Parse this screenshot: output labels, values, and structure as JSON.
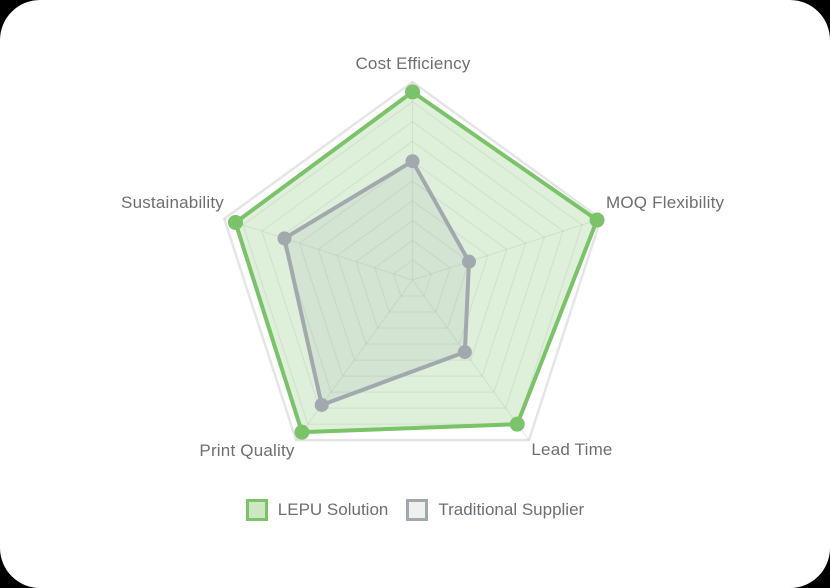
{
  "page": {
    "background": "#000000",
    "card_background": "#ffffff"
  },
  "chart_data": {
    "type": "radar",
    "categories": [
      "Cost Efficiency",
      "MOQ Flexibility",
      "Lead Time",
      "Print Quality",
      "Sustainability"
    ],
    "series": [
      {
        "name": "LEPU Solution",
        "values": [
          95,
          98,
          90,
          95,
          94
        ],
        "color": "#7ac368",
        "fill": "rgba(124,196,109,0.25)",
        "swatch_fill": "#cde7c2",
        "point_radius": 7.5
      },
      {
        "name": "Traditional Supplier",
        "values": [
          60,
          30,
          45,
          78,
          68
        ],
        "color": "#a2a9ae",
        "fill": "rgba(158,166,170,0.16)",
        "swatch_fill": "#eef1ee",
        "point_radius": 7
      }
    ],
    "scale": {
      "min": 0,
      "max": 100,
      "rings": 10
    },
    "grid": {
      "color": "rgba(0,0,0,0.07)",
      "outer_color": "rgba(0,0,0,0.10)"
    },
    "legend_position": "bottom",
    "label_color": "#6b7074"
  }
}
